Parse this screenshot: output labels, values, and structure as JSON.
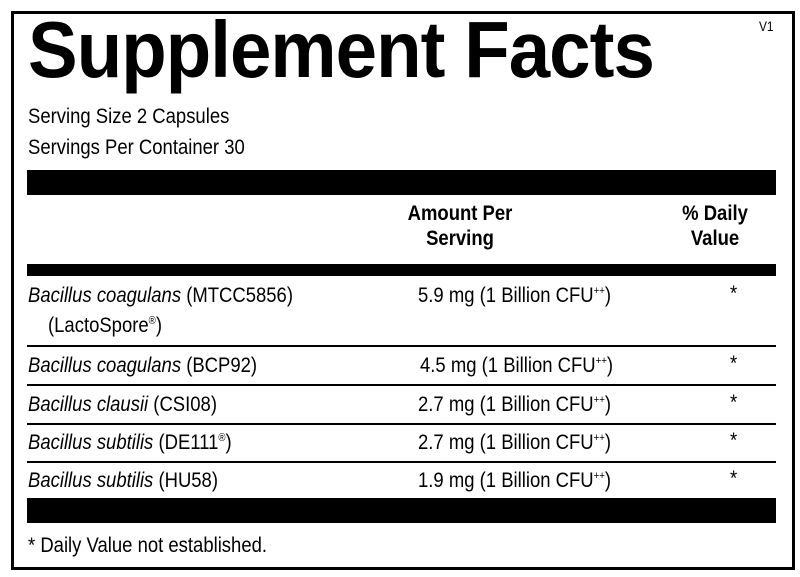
{
  "label": {
    "title": "Supplement Facts",
    "version": "V1",
    "serving_size": "Serving Size 2 Capsules",
    "servings_per_container": "Servings Per Container 30",
    "headers": {
      "amount_line1": "Amount Per",
      "amount_line2": "Serving",
      "dv_line1": "% Daily",
      "dv_line2": "Value"
    },
    "rows": [
      {
        "name": "Bacillus coagulans",
        "strain": " (MTCC5856)",
        "strain_line2": "(LactoSpore",
        "strain_line2_mark": "®",
        "strain_line2_end": ")",
        "amount": "5.9 mg (1 Billion CFU",
        "amount_mark": "++",
        "amount_end": ")",
        "dv": "*"
      },
      {
        "name": "Bacillus coagulans",
        "strain": " (BCP92)",
        "amount": "4.5 mg (1 Billion CFU",
        "amount_mark": "++",
        "amount_end": ")",
        "dv": "*"
      },
      {
        "name": "Bacillus clausii",
        "strain": " (CSI08)",
        "amount": "2.7 mg (1 Billion CFU",
        "amount_mark": "++",
        "amount_end": ")",
        "dv": "*"
      },
      {
        "name": "Bacillus subtilis",
        "strain": " (DE111",
        "strain_mark": "®",
        "strain_end": ")",
        "amount": "2.7 mg (1 Billion CFU",
        "amount_mark": "++",
        "amount_end": ")",
        "dv": "*"
      },
      {
        "name": "Bacillus subtilis",
        "strain": " (HU58)",
        "amount": "1.9 mg (1 Billion CFU",
        "amount_mark": "++",
        "amount_end": ")",
        "dv": "*"
      }
    ],
    "footnote": "* Daily Value not established."
  }
}
